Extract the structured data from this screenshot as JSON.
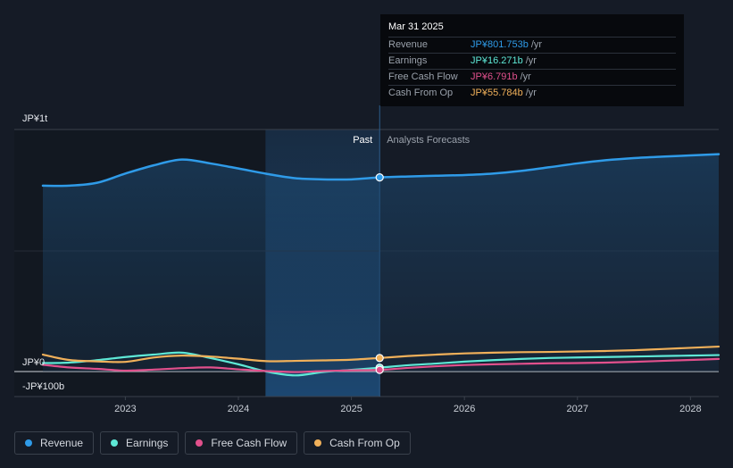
{
  "tooltip": {
    "date": "Mar 31 2025",
    "rows": [
      {
        "label": "Revenue",
        "value": "JP¥801.753b",
        "unit": "/yr",
        "color": "#2f9be8"
      },
      {
        "label": "Earnings",
        "value": "JP¥16.271b",
        "unit": "/yr",
        "color": "#5ee8d6"
      },
      {
        "label": "Free Cash Flow",
        "value": "JP¥6.791b",
        "unit": "/yr",
        "color": "#e1508c"
      },
      {
        "label": "Cash From Op",
        "value": "JP¥55.784b",
        "unit": "/yr",
        "color": "#f0b05a"
      }
    ]
  },
  "legend": [
    {
      "label": "Revenue",
      "color": "#2f9be8"
    },
    {
      "label": "Earnings",
      "color": "#5ee8d6"
    },
    {
      "label": "Free Cash Flow",
      "color": "#e1508c"
    },
    {
      "label": "Cash From Op",
      "color": "#f0b05a"
    }
  ],
  "chart_data": {
    "type": "line",
    "y_unit": "JP¥ billions",
    "ylim": [
      -100,
      1000
    ],
    "y_tick_labels": [
      {
        "value": 1000,
        "label": "JP¥1t"
      },
      {
        "value": 0,
        "label": "JP¥0"
      },
      {
        "value": -100,
        "label": "-JP¥100b"
      }
    ],
    "x_ticks": [
      "2023",
      "2024",
      "2025",
      "2026",
      "2027",
      "2028"
    ],
    "xlim": [
      2022.27,
      2028.25
    ],
    "past_label": "Past",
    "forecast_label": "Analysts Forecasts",
    "highlight_range": [
      2024.24,
      2025.25
    ],
    "divider_x": 2025.25,
    "marker_x": 2025.25,
    "series": [
      {
        "name": "Revenue",
        "color": "#2f9be8",
        "x": [
          2022.5,
          2022.75,
          2023.0,
          2023.25,
          2023.5,
          2023.75,
          2024.0,
          2024.25,
          2024.5,
          2024.75,
          2025.0,
          2025.25,
          2025.5,
          2025.75,
          2026.0,
          2026.25,
          2026.5,
          2026.75,
          2027.0,
          2027.25,
          2027.5,
          2027.75,
          2028.0,
          2028.25
        ],
        "values": [
          768,
          780,
          818,
          852,
          876,
          860,
          839,
          817,
          799,
          794,
          794,
          802,
          806,
          809,
          812,
          818,
          829,
          844,
          860,
          873,
          882,
          888,
          893,
          898
        ]
      },
      {
        "name": "Earnings",
        "color": "#5ee8d6",
        "x": [
          2022.5,
          2022.75,
          2023.0,
          2023.25,
          2023.5,
          2023.75,
          2024.0,
          2024.25,
          2024.5,
          2024.75,
          2025.0,
          2025.25,
          2025.5,
          2025.75,
          2026.0,
          2026.25,
          2026.5,
          2026.75,
          2027.0,
          2027.25,
          2027.5,
          2027.75,
          2028.0,
          2028.25
        ],
        "values": [
          37,
          47,
          60,
          70,
          78,
          56,
          30,
          0,
          -16,
          -2,
          7,
          16,
          26,
          33,
          41,
          47,
          52,
          56,
          58,
          60,
          62,
          64,
          66,
          68
        ]
      },
      {
        "name": "Free Cash Flow",
        "color": "#e1508c",
        "x": [
          2022.5,
          2022.75,
          2023.0,
          2023.25,
          2023.5,
          2023.75,
          2024.0,
          2024.25,
          2024.5,
          2024.75,
          2025.0,
          2025.25,
          2025.5,
          2025.75,
          2026.0,
          2026.25,
          2026.5,
          2026.75,
          2027.0,
          2027.25,
          2027.5,
          2027.75,
          2028.0,
          2028.25
        ],
        "values": [
          17,
          11,
          4,
          8,
          14,
          17,
          9,
          2,
          -2,
          2,
          5,
          7,
          15,
          22,
          27,
          30,
          32,
          34,
          35,
          37,
          40,
          44,
          48,
          52
        ]
      },
      {
        "name": "Cash From Op",
        "color": "#f0b05a",
        "x": [
          2022.5,
          2022.75,
          2023.0,
          2023.25,
          2023.5,
          2023.75,
          2024.0,
          2024.25,
          2024.5,
          2024.75,
          2025.0,
          2025.25,
          2025.5,
          2025.75,
          2026.0,
          2026.25,
          2026.5,
          2026.75,
          2027.0,
          2027.25,
          2027.5,
          2027.75,
          2028.0,
          2028.25
        ],
        "values": [
          48,
          42,
          40,
          58,
          66,
          62,
          53,
          43,
          44,
          46,
          49,
          56,
          64,
          70,
          75,
          78,
          80,
          81,
          83,
          85,
          88,
          93,
          98,
          103
        ]
      }
    ],
    "series_start_x": 2022.27,
    "series_start_values": [
      768,
      35,
      28,
      70
    ]
  }
}
